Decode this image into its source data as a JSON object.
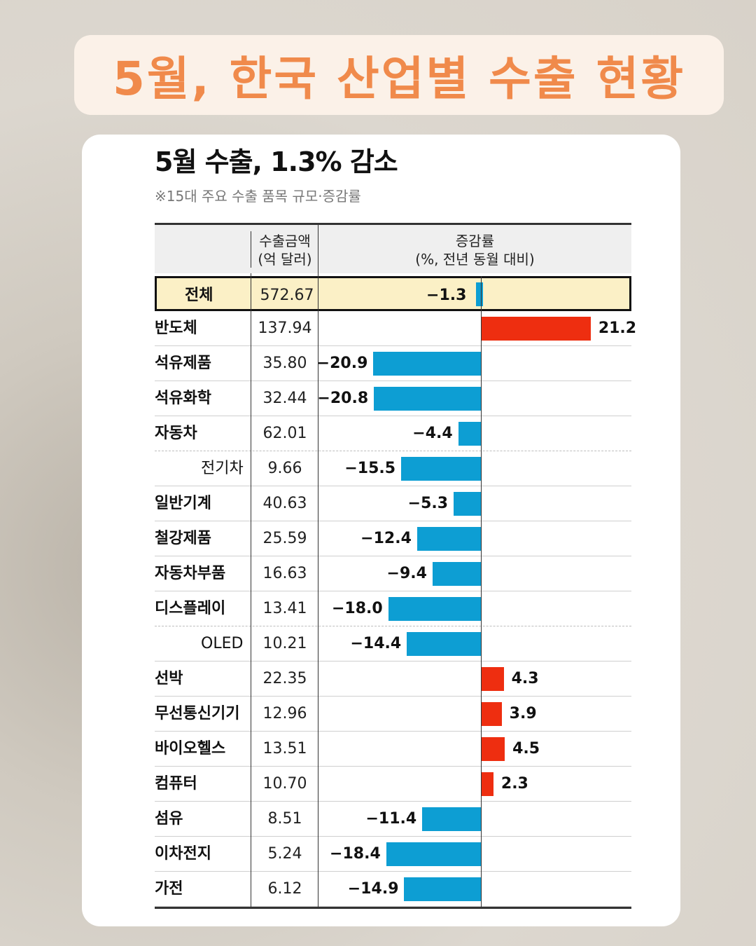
{
  "banner": {
    "title": "5월, 한국 산업별 수출 현황"
  },
  "chart_data": {
    "type": "bar",
    "title": "5월 수출, 1.3% 감소",
    "subtitle": "※15대 주요 수출 품목 규모·증감률",
    "column_headers": {
      "amount": [
        "수출금액",
        "(억 달러)"
      ],
      "rate": [
        "증감률",
        "(%, 전년 동월 대비)"
      ]
    },
    "categories": [
      "전체",
      "반도체",
      "석유제품",
      "석유화학",
      "자동차",
      "전기차",
      "일반기계",
      "철강제품",
      "자동차부품",
      "디스플레이",
      "OLED",
      "선박",
      "무선통신기기",
      "바이오헬스",
      "컴퓨터",
      "섬유",
      "이차전지",
      "가전"
    ],
    "amounts": [
      "572.67",
      "137.94",
      "35.80",
      "32.44",
      "62.01",
      "9.66",
      "40.63",
      "25.59",
      "16.63",
      "13.41",
      "10.21",
      "22.35",
      "12.96",
      "13.51",
      "10.70",
      "8.51",
      "5.24",
      "6.12"
    ],
    "series": [
      {
        "values": [
          -1.3,
          21.2,
          -20.9,
          -20.8,
          -4.4,
          -15.5,
          -5.3,
          -12.4,
          -9.4,
          -18.0,
          -14.4,
          4.3,
          3.9,
          4.5,
          2.3,
          -11.4,
          -18.4,
          -14.9
        ]
      }
    ],
    "value_labels": [
      "−1.3",
      "21.2",
      "−20.9",
      "−20.8",
      "−4.4",
      "−15.5",
      "−5.3",
      "−12.4",
      "−9.4",
      "−18.0",
      "−14.4",
      "4.3",
      "3.9",
      "4.5",
      "2.3",
      "−11.4",
      "−18.4",
      "−14.9"
    ],
    "sub_items": [
      "전기차",
      "OLED"
    ],
    "highlight": "전체",
    "colors": {
      "negative": "#0d9ed3",
      "positive": "#ee2e10",
      "highlight_bg": "#fbf0c6"
    }
  }
}
